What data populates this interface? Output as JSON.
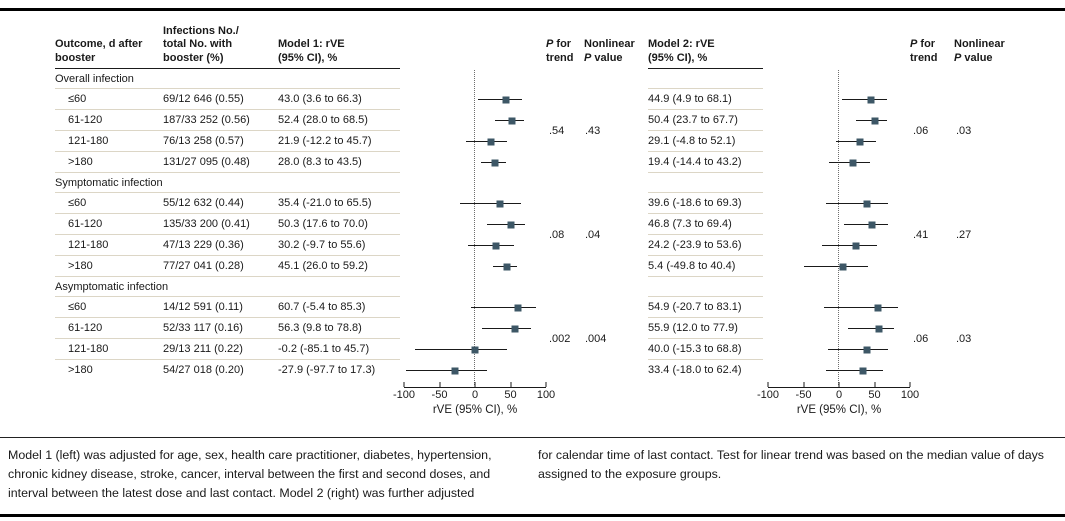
{
  "figure": {
    "headers": {
      "outcome_l1": "Outcome, d after",
      "outcome_l2": "booster",
      "infections_l1": "Infections No./",
      "infections_l2": "total No. with",
      "infections_l3": "booster (%)",
      "model1_l1": "Model 1: rVE",
      "model1_l2": "(95% CI), %",
      "model2_l1": "Model 2: rVE",
      "model2_l2": "(95% CI), %",
      "p_italic": "P",
      "p_for_rest": " for",
      "p_trend_l2": "trend",
      "nonlinear_l1": "Nonlinear",
      "p_value_rest": " value"
    },
    "footnote_left": "Model 1 (left) was adjusted for age, sex, health care practitioner, diabetes, hypertension, chronic kidney disease, stroke, cancer, interval between the first and second doses, and interval between the latest dose and last contact. Model 2 (right) was further adjusted",
    "footnote_right": "for calendar time of last contact. Test for linear trend was based on the median value of days assigned to the exposure groups."
  },
  "colors": {
    "marker": "#3d5766",
    "ci_line": "#1a1a1a",
    "rule_dark": "#1a1a1a",
    "rule_light": "#dcd6c6",
    "reference_line": "#6e6e6e"
  },
  "chart_data": {
    "type": "forest",
    "models": [
      "Model 1: rVE (95% CI), %",
      "Model 2: rVE (95% CI), %"
    ],
    "axis_label": "rVE (95% CI), %",
    "xlim": [
      -100,
      100
    ],
    "xticks": [
      "-100",
      "-50",
      "0",
      "50",
      "100"
    ],
    "reference_line": 0,
    "groups": [
      {
        "label": "Overall infection",
        "model1": {
          "p_trend": ".54",
          "nonlinear_p": ".43"
        },
        "model2": {
          "p_trend": ".06",
          "nonlinear_p": ".03"
        },
        "rows": [
          {
            "outcome": "≤60",
            "infections": "69/12 646 (0.55)",
            "model1": {
              "text": "43.0 (3.6 to 66.3)",
              "est": 43.0,
              "lo": 3.6,
              "hi": 66.3
            },
            "model2": {
              "text": "44.9 (4.9 to 68.1)",
              "est": 44.9,
              "lo": 4.9,
              "hi": 68.1
            }
          },
          {
            "outcome": "61-120",
            "infections": "187/33 252 (0.56)",
            "model1": {
              "text": "52.4 (28.0 to 68.5)",
              "est": 52.4,
              "lo": 28.0,
              "hi": 68.5
            },
            "model2": {
              "text": "50.4 (23.7 to 67.7)",
              "est": 50.4,
              "lo": 23.7,
              "hi": 67.7
            }
          },
          {
            "outcome": "121-180",
            "infections": "76/13 258 (0.57)",
            "model1": {
              "text": "21.9 (-12.2 to 45.7)",
              "est": 21.9,
              "lo": -12.2,
              "hi": 45.7
            },
            "model2": {
              "text": "29.1 (-4.8 to 52.1)",
              "est": 29.1,
              "lo": -4.8,
              "hi": 52.1
            }
          },
          {
            "outcome": ">180",
            "infections": "131/27 095 (0.48)",
            "model1": {
              "text": "28.0 (8.3 to 43.5)",
              "est": 28.0,
              "lo": 8.3,
              "hi": 43.5
            },
            "model2": {
              "text": "19.4 (-14.4 to 43.2)",
              "est": 19.4,
              "lo": -14.4,
              "hi": 43.2
            }
          }
        ]
      },
      {
        "label": "Symptomatic infection",
        "model1": {
          "p_trend": ".08",
          "nonlinear_p": ".04"
        },
        "model2": {
          "p_trend": ".41",
          "nonlinear_p": ".27"
        },
        "rows": [
          {
            "outcome": "≤60",
            "infections": "55/12 632 (0.44)",
            "model1": {
              "text": "35.4 (-21.0 to 65.5)",
              "est": 35.4,
              "lo": -21.0,
              "hi": 65.5
            },
            "model2": {
              "text": "39.6 (-18.6 to 69.3)",
              "est": 39.6,
              "lo": -18.6,
              "hi": 69.3
            }
          },
          {
            "outcome": "61-120",
            "infections": "135/33 200 (0.41)",
            "model1": {
              "text": "50.3 (17.6 to 70.0)",
              "est": 50.3,
              "lo": 17.6,
              "hi": 70.0
            },
            "model2": {
              "text": "46.8 (7.3 to 69.4)",
              "est": 46.8,
              "lo": 7.3,
              "hi": 69.4
            }
          },
          {
            "outcome": "121-180",
            "infections": "47/13 229 (0.36)",
            "model1": {
              "text": "30.2 (-9.7 to 55.6)",
              "est": 30.2,
              "lo": -9.7,
              "hi": 55.6
            },
            "model2": {
              "text": "24.2 (-23.9 to 53.6)",
              "est": 24.2,
              "lo": -23.9,
              "hi": 53.6
            }
          },
          {
            "outcome": ">180",
            "infections": "77/27 041 (0.28)",
            "model1": {
              "text": "45.1 (26.0 to 59.2)",
              "est": 45.1,
              "lo": 26.0,
              "hi": 59.2
            },
            "model2": {
              "text": "5.4 (-49.8 to 40.4)",
              "est": 5.4,
              "lo": -49.8,
              "hi": 40.4
            }
          }
        ]
      },
      {
        "label": "Asymptomatic infection",
        "model1": {
          "p_trend": ".002",
          "nonlinear_p": ".004"
        },
        "model2": {
          "p_trend": ".06",
          "nonlinear_p": ".03"
        },
        "rows": [
          {
            "outcome": "≤60",
            "infections": "14/12 591 (0.11)",
            "model1": {
              "text": "60.7 (-5.4 to 85.3)",
              "est": 60.7,
              "lo": -5.4,
              "hi": 85.3
            },
            "model2": {
              "text": "54.9 (-20.7 to 83.1)",
              "est": 54.9,
              "lo": -20.7,
              "hi": 83.1
            }
          },
          {
            "outcome": "61-120",
            "infections": "52/33 117 (0.16)",
            "model1": {
              "text": "56.3 (9.8 to 78.8)",
              "est": 56.3,
              "lo": 9.8,
              "hi": 78.8
            },
            "model2": {
              "text": "55.9 (12.0 to 77.9)",
              "est": 55.9,
              "lo": 12.0,
              "hi": 77.9
            }
          },
          {
            "outcome": "121-180",
            "infections": "29/13 211 (0.22)",
            "model1": {
              "text": "-0.2 (-85.1 to 45.7)",
              "est": -0.2,
              "lo": -85.1,
              "hi": 45.7
            },
            "model2": {
              "text": "40.0 (-15.3 to 68.8)",
              "est": 40.0,
              "lo": -15.3,
              "hi": 68.8
            }
          },
          {
            "outcome": ">180",
            "infections": "54/27 018 (0.20)",
            "model1": {
              "text": "-27.9 (-97.7 to 17.3)",
              "est": -27.9,
              "lo": -97.7,
              "hi": 17.3
            },
            "model2": {
              "text": "33.4 (-18.0 to 62.4)",
              "est": 33.4,
              "lo": -18.0,
              "hi": 62.4
            }
          }
        ]
      }
    ]
  }
}
